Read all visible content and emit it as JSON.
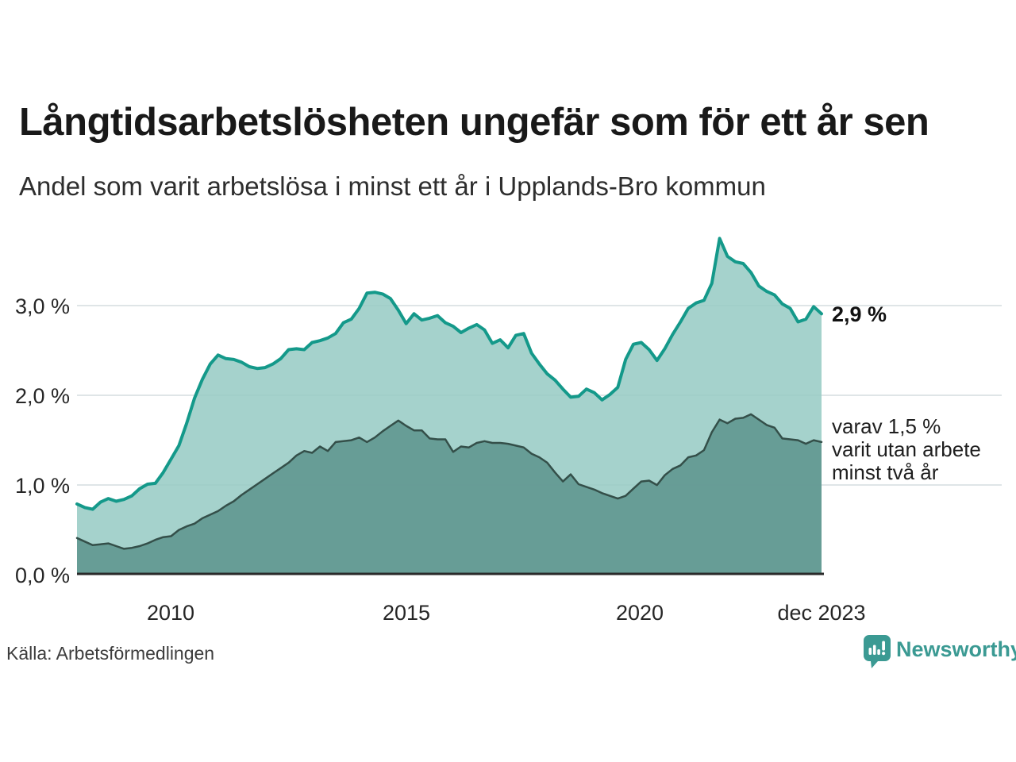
{
  "title": "Långtidsarbetslösheten ungefär som för ett år sen",
  "subtitle": "Andel som varit arbetslösa i minst ett år i Upplands-Bro kommun",
  "source": "Källa: Arbetsförmedlingen",
  "branding": {
    "name": "Newsworthy",
    "icon": "newsworthy-bubble-chart-icon",
    "color": "#3b9a93"
  },
  "annotations": {
    "latest_total": "2,9 %",
    "latest_two_years_lines": [
      "varav 1,5 %",
      "varit utan arbete",
      "minst två år"
    ]
  },
  "colors": {
    "total_line": "#14998a",
    "total_fill": "#98ccc5",
    "two_year_line": "#344f49",
    "two_year_fill": "#5f958e",
    "gridline": "#dfe5e7",
    "axis": "#2a2a2a",
    "text": "#1a1a1a"
  },
  "chart_data": {
    "type": "area",
    "title": "Långtidsarbetslösheten ungefär som för ett år sen",
    "subtitle": "Andel som varit arbetslösa i minst ett år i Upplands-Bro kommun",
    "unit": "%",
    "x_start": "jan 2008",
    "x_end": "dec 2023",
    "sampling": "estimated values every 2 months, jan 2008 - dec 2023",
    "ylim": [
      0,
      3.9
    ],
    "grid": "horizontal",
    "y_ticks": [
      {
        "label": "3,0 %",
        "value": 3.0
      },
      {
        "label": "2,0 %",
        "value": 2.0
      },
      {
        "label": "1,0 %",
        "value": 1.0
      },
      {
        "label": "0,0 %",
        "value": 0.0
      }
    ],
    "x_ticks": [
      {
        "label": "2010",
        "t": 2010.0
      },
      {
        "label": "2015",
        "t": 2015.0
      },
      {
        "label": "2020",
        "t": 2020.0
      },
      {
        "label": "dec 2023",
        "t": 2023.917
      }
    ],
    "series": [
      {
        "name": "Andel arbetslösa minst ett år",
        "latest_label": "2,9 %",
        "latest_value": 2.9,
        "values": [
          0.78,
          0.74,
          0.72,
          0.8,
          0.84,
          0.81,
          0.83,
          0.87,
          0.95,
          1.0,
          1.01,
          1.13,
          1.28,
          1.43,
          1.68,
          1.96,
          2.17,
          2.34,
          2.44,
          2.4,
          2.39,
          2.36,
          2.31,
          2.29,
          2.3,
          2.34,
          2.4,
          2.5,
          2.51,
          2.5,
          2.58,
          2.6,
          2.63,
          2.68,
          2.8,
          2.84,
          2.96,
          3.13,
          3.14,
          3.12,
          3.07,
          2.94,
          2.79,
          2.9,
          2.83,
          2.85,
          2.88,
          2.8,
          2.76,
          2.69,
          2.74,
          2.78,
          2.72,
          2.57,
          2.61,
          2.52,
          2.66,
          2.68,
          2.46,
          2.34,
          2.23,
          2.16,
          2.06,
          1.97,
          1.98,
          2.06,
          2.02,
          1.94,
          2.0,
          2.08,
          2.39,
          2.56,
          2.58,
          2.5,
          2.38,
          2.51,
          2.67,
          2.81,
          2.96,
          3.02,
          3.05,
          3.24,
          3.74,
          3.54,
          3.48,
          3.46,
          3.36,
          3.21,
          3.15,
          3.11,
          3.01,
          2.96,
          2.81,
          2.84,
          2.98,
          2.9
        ]
      },
      {
        "name": "Varav utan arbete minst två år",
        "latest_label": "varav 1,5 % varit utan arbete minst två år",
        "latest_value": 1.5,
        "values": [
          0.4,
          0.36,
          0.32,
          0.33,
          0.34,
          0.31,
          0.28,
          0.29,
          0.31,
          0.34,
          0.38,
          0.41,
          0.42,
          0.49,
          0.53,
          0.56,
          0.62,
          0.66,
          0.7,
          0.76,
          0.81,
          0.88,
          0.94,
          1.0,
          1.06,
          1.12,
          1.18,
          1.24,
          1.32,
          1.37,
          1.35,
          1.42,
          1.37,
          1.47,
          1.48,
          1.49,
          1.52,
          1.47,
          1.52,
          1.59,
          1.65,
          1.71,
          1.65,
          1.6,
          1.6,
          1.51,
          1.5,
          1.5,
          1.36,
          1.42,
          1.41,
          1.46,
          1.48,
          1.46,
          1.46,
          1.45,
          1.43,
          1.41,
          1.34,
          1.3,
          1.24,
          1.13,
          1.03,
          1.11,
          1.0,
          0.97,
          0.94,
          0.9,
          0.87,
          0.84,
          0.87,
          0.95,
          1.03,
          1.04,
          0.99,
          1.1,
          1.17,
          1.21,
          1.3,
          1.32,
          1.38,
          1.58,
          1.72,
          1.68,
          1.73,
          1.74,
          1.78,
          1.72,
          1.66,
          1.63,
          1.51,
          1.5,
          1.49,
          1.45,
          1.49,
          1.47
        ]
      }
    ]
  }
}
